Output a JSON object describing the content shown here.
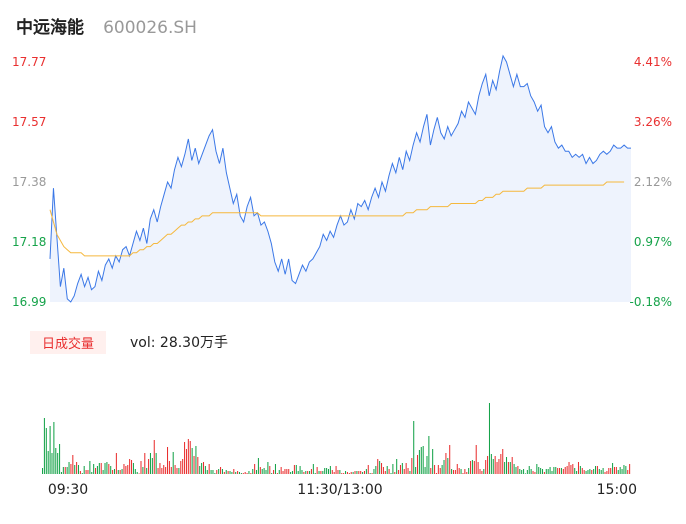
{
  "header": {
    "name": "中远海能",
    "code": "600026.SH"
  },
  "colors": {
    "up": "#e93030",
    "down": "#16a34a",
    "neutral": "#999999",
    "price_line": "#3b78e7",
    "avg_line": "#f5b83d",
    "area_fill": "#eef3fd"
  },
  "volume": {
    "tag": "日成交量",
    "readout": "vol: 28.30万手"
  },
  "chart_data": {
    "type": "line",
    "price_axis": {
      "labels": [
        "17.77",
        "17.57",
        "17.38",
        "17.18",
        "16.99"
      ],
      "ylim": [
        16.99,
        17.77
      ]
    },
    "pct_axis": {
      "labels": [
        "4.41%",
        "3.26%",
        "2.12%",
        "0.97%",
        "-0.18%"
      ]
    },
    "x_labels": [
      "09:30",
      "11:30/13:00",
      "15:00"
    ],
    "price": [
      17.13,
      17.36,
      17.2,
      17.04,
      17.1,
      17.0,
      16.99,
      17.01,
      17.05,
      17.08,
      17.04,
      17.07,
      17.03,
      17.04,
      17.09,
      17.06,
      17.11,
      17.13,
      17.1,
      17.14,
      17.12,
      17.16,
      17.17,
      17.14,
      17.18,
      17.22,
      17.19,
      17.23,
      17.18,
      17.26,
      17.29,
      17.25,
      17.3,
      17.34,
      17.38,
      17.36,
      17.42,
      17.46,
      17.43,
      17.47,
      17.52,
      17.45,
      17.49,
      17.44,
      17.47,
      17.5,
      17.53,
      17.55,
      17.48,
      17.44,
      17.49,
      17.41,
      17.36,
      17.31,
      17.34,
      17.27,
      17.25,
      17.3,
      17.33,
      17.27,
      17.28,
      17.24,
      17.25,
      17.22,
      17.18,
      17.12,
      17.09,
      17.13,
      17.08,
      17.13,
      17.06,
      17.05,
      17.08,
      17.11,
      17.09,
      17.12,
      17.13,
      17.15,
      17.17,
      17.21,
      17.19,
      17.22,
      17.2,
      17.24,
      17.27,
      17.24,
      17.25,
      17.29,
      17.26,
      17.31,
      17.3,
      17.32,
      17.29,
      17.33,
      17.36,
      17.33,
      17.38,
      17.35,
      17.4,
      17.44,
      17.41,
      17.46,
      17.42,
      17.48,
      17.45,
      17.5,
      17.54,
      17.51,
      17.56,
      17.6,
      17.5,
      17.55,
      17.59,
      17.54,
      17.52,
      17.56,
      17.53,
      17.55,
      17.57,
      17.61,
      17.59,
      17.64,
      17.62,
      17.6,
      17.66,
      17.7,
      17.73,
      17.66,
      17.71,
      17.68,
      17.74,
      17.79,
      17.77,
      17.73,
      17.69,
      17.73,
      17.69,
      17.69,
      17.7,
      17.66,
      17.64,
      17.61,
      17.63,
      17.56,
      17.54,
      17.56,
      17.51,
      17.49,
      17.5,
      17.48,
      17.48,
      17.46,
      17.47,
      17.46,
      17.47,
      17.44,
      17.46,
      17.44,
      17.45,
      17.47,
      17.48,
      17.47,
      17.48,
      17.5,
      17.49,
      17.49,
      17.5,
      17.49,
      17.49
    ],
    "avg": [
      17.29,
      17.25,
      17.21,
      17.19,
      17.17,
      17.16,
      17.15,
      17.15,
      17.15,
      17.15,
      17.14,
      17.14,
      17.14,
      17.14,
      17.14,
      17.14,
      17.14,
      17.14,
      17.14,
      17.14,
      17.14,
      17.14,
      17.14,
      17.14,
      17.15,
      17.15,
      17.16,
      17.16,
      17.17,
      17.17,
      17.18,
      17.18,
      17.19,
      17.2,
      17.21,
      17.21,
      17.22,
      17.23,
      17.24,
      17.24,
      17.25,
      17.25,
      17.26,
      17.26,
      17.27,
      17.27,
      17.27,
      17.28,
      17.28,
      17.28,
      17.28,
      17.28,
      17.28,
      17.28,
      17.28,
      17.28,
      17.28,
      17.28,
      17.28,
      17.28,
      17.28,
      17.27,
      17.27,
      17.27,
      17.27,
      17.27,
      17.27,
      17.27,
      17.27,
      17.27,
      17.27,
      17.27,
      17.27,
      17.27,
      17.27,
      17.27,
      17.27,
      17.27,
      17.27,
      17.27,
      17.27,
      17.27,
      17.27,
      17.27,
      17.27,
      17.27,
      17.27,
      17.27,
      17.27,
      17.27,
      17.27,
      17.27,
      17.27,
      17.27,
      17.27,
      17.27,
      17.27,
      17.27,
      17.27,
      17.27,
      17.27,
      17.27,
      17.27,
      17.28,
      17.28,
      17.28,
      17.29,
      17.29,
      17.29,
      17.29,
      17.3,
      17.3,
      17.3,
      17.3,
      17.3,
      17.3,
      17.31,
      17.31,
      17.31,
      17.31,
      17.31,
      17.31,
      17.31,
      17.31,
      17.32,
      17.32,
      17.33,
      17.33,
      17.33,
      17.34,
      17.34,
      17.35,
      17.35,
      17.35,
      17.35,
      17.35,
      17.35,
      17.35,
      17.36,
      17.36,
      17.36,
      17.36,
      17.36,
      17.37,
      17.37,
      17.37,
      17.37,
      17.37,
      17.37,
      17.37,
      17.37,
      17.37,
      17.37,
      17.37,
      17.37,
      17.37,
      17.37,
      17.37,
      17.37,
      17.37,
      17.37,
      17.38,
      17.38,
      17.38,
      17.38,
      17.38,
      17.38
    ],
    "volume_bars": [
      {
        "v": [
          0.06,
          0.56,
          0.46,
          0.23,
          0.48,
          0.21,
          0.52,
          0.26,
          0.21,
          0.3,
          0.02,
          0.07,
          0.07,
          0.07,
          0.12,
          0.1,
          0.19,
          0.09,
          0.12,
          0.09,
          0.03,
          0.01,
          0.08,
          0.04,
          0.04,
          0.13,
          0.02,
          0.1,
          0.06,
          0.08,
          0.11,
          0.11,
          0.04,
          0.11,
          0.12,
          0.1,
          0.08,
          0.04,
          0.05,
          0.21,
          0.04,
          0.04,
          0.05,
          0.1,
          0.08,
          0.09,
          0.15,
          0.14,
          0.11,
          0.05,
          0.02,
          0.0,
          0.13,
          0.07,
          0.21,
          0.06,
          0.15,
          0.21,
          0.16,
          0.34,
          0.21,
          0.06,
          0.11,
          0.06,
          0.09,
          0.07,
          0.27,
          0.13,
          0.07,
          0.22,
          0.09,
          0.06,
          0.06,
          0.13,
          0.15,
          0.32,
          0.25,
          0.35,
          0.33,
          0.26,
          0.18,
          0.28,
          0.17,
          0.08,
          0.11,
          0.12,
          0.08,
          0.04,
          0.1,
          0.04,
          0.04,
          0.01,
          0.04,
          0.05,
          0.07,
          0.05,
          0.02,
          0.04,
          0.03,
          0.03,
          0.02,
          0.05,
          0.02,
          0.03,
          0.02,
          0.01,
          0.01,
          0.02,
          0.01,
          0.03,
          0.01,
          0.05,
          0.1,
          0.04,
          0.16,
          0.07,
          0.05,
          0.06,
          0.04,
          0.12,
          0.08,
          0.01,
          0.04,
          0.1,
          0.01,
          0.04,
          0.07,
          0.03,
          0.05,
          0.05,
          0.05,
          0.02,
          0.03,
          0.09,
          0.09,
          0.03,
          0.08,
          0.04,
          0.02,
          0.03,
          0.03,
          0.03,
          0.05,
          0.1,
          0.01,
          0.07,
          0.03,
          0.03,
          0.03,
          0.06,
          0.06,
          0.05,
          0.08,
          0.04,
          0.02,
          0.08,
          0.04,
          0.04,
          0.01,
          0.01,
          0.03,
          0.02,
          0.01,
          0.02,
          0.02,
          0.03,
          0.03,
          0.03,
          0.03,
          0.02,
          0.03,
          0.05,
          0.09,
          0.01,
          0.01,
          0.05,
          0.08,
          0.15,
          0.13,
          0.11,
          0.07,
          0.03,
          0.08,
          0.05,
          0.01,
          0.1,
          0.02,
          0.15,
          0.04,
          0.09,
          0.11,
          0.05,
          0.11,
          0.06,
          0.03,
          0.16,
          0.53,
          0.07,
          0.19,
          0.24,
          0.27,
          0.28,
          0.07,
          0.18,
          0.38,
          0.06,
          0.25,
          0.09,
          0.01,
          0.09,
          0.06,
          0.09,
          0.14,
          0.21,
          0.16,
          0.29,
          0.05,
          0.04,
          0.04,
          0.1,
          0.06,
          0.05,
          0.01,
          0.05,
          0.02,
          0.06,
          0.13,
          0.14,
          0.13,
          0.29,
          0.12,
          0.05,
          0.03,
          0.05,
          0.14,
          0.18,
          0.71,
          0.2,
          0.15,
          0.18,
          0.12,
          0.15,
          0.2,
          0.25,
          0.12,
          0.17,
          0.12,
          0.12,
          0.17,
          0.1,
          0.07,
          0.08,
          0.05,
          0.04,
          0.05,
          0.0,
          0.04,
          0.08,
          0.05,
          0.03,
          0.02,
          0.1,
          0.07,
          0.06,
          0.05,
          0.02,
          0.05,
          0.05,
          0.07,
          0.03,
          0.07,
          0.07,
          0.06,
          0.06,
          0.06,
          0.05,
          0.07,
          0.08,
          0.12,
          0.09,
          0.1,
          0.06,
          0.03,
          0.12,
          0.08,
          0.06,
          0.04,
          0.03,
          0.04,
          0.05,
          0.04,
          0.05,
          0.08,
          0.08,
          0.05,
          0.04,
          0.06,
          0.02,
          0.03,
          0.06,
          0.06,
          0.11,
          0.07,
          0.07,
          0.04,
          0.07,
          0.05,
          0.09,
          0.08,
          0.04,
          0.1
        ],
        "c": [
          "d",
          "d",
          "d",
          "d",
          "d",
          "d",
          "d",
          "d",
          "d",
          "d",
          "d",
          "d",
          "u",
          "d",
          "d",
          "u",
          "u",
          "d",
          "u",
          "d",
          "u",
          "d",
          "d",
          "u",
          "u",
          "d",
          "d",
          "d",
          "u",
          "d",
          "d",
          "u",
          "d",
          "d",
          "d",
          "u",
          "d",
          "u",
          "d",
          "u",
          "d",
          "u",
          "d",
          "u",
          "u",
          "u",
          "u",
          "u",
          "d",
          "d",
          "d",
          "u",
          "u",
          "d",
          "u",
          "d",
          "u",
          "d",
          "d",
          "u",
          "d",
          "u",
          "u",
          "u",
          "u",
          "u",
          "u",
          "u",
          "u",
          "d",
          "u",
          "u",
          "d",
          "u",
          "u",
          "u",
          "u",
          "u",
          "u",
          "d",
          "u",
          "d",
          "u",
          "d",
          "d",
          "u",
          "d",
          "d",
          "u",
          "d",
          "d",
          "d",
          "u",
          "d",
          "u",
          "d",
          "u",
          "d",
          "u",
          "d",
          "d",
          "u",
          "d",
          "u",
          "d",
          "d",
          "u",
          "u",
          "u",
          "d",
          "u",
          "d",
          "u",
          "d",
          "d",
          "u",
          "d",
          "d",
          "d",
          "d",
          "u",
          "d",
          "u",
          "d",
          "u",
          "d",
          "u",
          "u",
          "u",
          "u",
          "u",
          "d",
          "d",
          "u",
          "d",
          "d",
          "d",
          "d",
          "u",
          "d",
          "u",
          "d",
          "u",
          "d",
          "d",
          "u",
          "d",
          "u",
          "d",
          "d",
          "d",
          "d",
          "d",
          "u",
          "u",
          "u",
          "u",
          "d",
          "u",
          "u",
          "d",
          "u",
          "u",
          "u",
          "d",
          "u",
          "d",
          "u",
          "u",
          "d",
          "u",
          "d",
          "u",
          "d",
          "u",
          "d",
          "d",
          "u",
          "d",
          "u",
          "u",
          "u",
          "d",
          "u",
          "d",
          "d",
          "u",
          "d",
          "u",
          "u",
          "d",
          "u",
          "u",
          "u",
          "d",
          "u",
          "d",
          "d",
          "u",
          "d",
          "d",
          "d",
          "d",
          "d",
          "d",
          "u",
          "d",
          "u",
          "u",
          "u",
          "u",
          "d",
          "d",
          "u",
          "d",
          "u",
          "d",
          "u",
          "u",
          "u",
          "u",
          "d",
          "u",
          "u",
          "u",
          "d",
          "u",
          "d",
          "u",
          "u",
          "u",
          "u",
          "u",
          "d",
          "u",
          "u",
          "d",
          "d",
          "d",
          "u",
          "u",
          "u",
          "u",
          "u",
          "d",
          "d",
          "u",
          "d",
          "u",
          "d",
          "d",
          "u",
          "d",
          "d",
          "d",
          "d",
          "d",
          "d",
          "d",
          "u",
          "u",
          "d",
          "d",
          "d",
          "d",
          "u",
          "d",
          "d",
          "d",
          "d",
          "d",
          "d",
          "u",
          "u",
          "d",
          "u",
          "u",
          "u",
          "u",
          "u",
          "u",
          "d",
          "d",
          "u",
          "d",
          "u",
          "u",
          "d",
          "d",
          "d",
          "u",
          "d",
          "d",
          "u",
          "d",
          "d",
          "d",
          "u",
          "u",
          "u",
          "u",
          "d",
          "u",
          "u",
          "d",
          "d",
          "d",
          "d",
          "d",
          "u",
          "u"
        ]
      }
    ]
  }
}
